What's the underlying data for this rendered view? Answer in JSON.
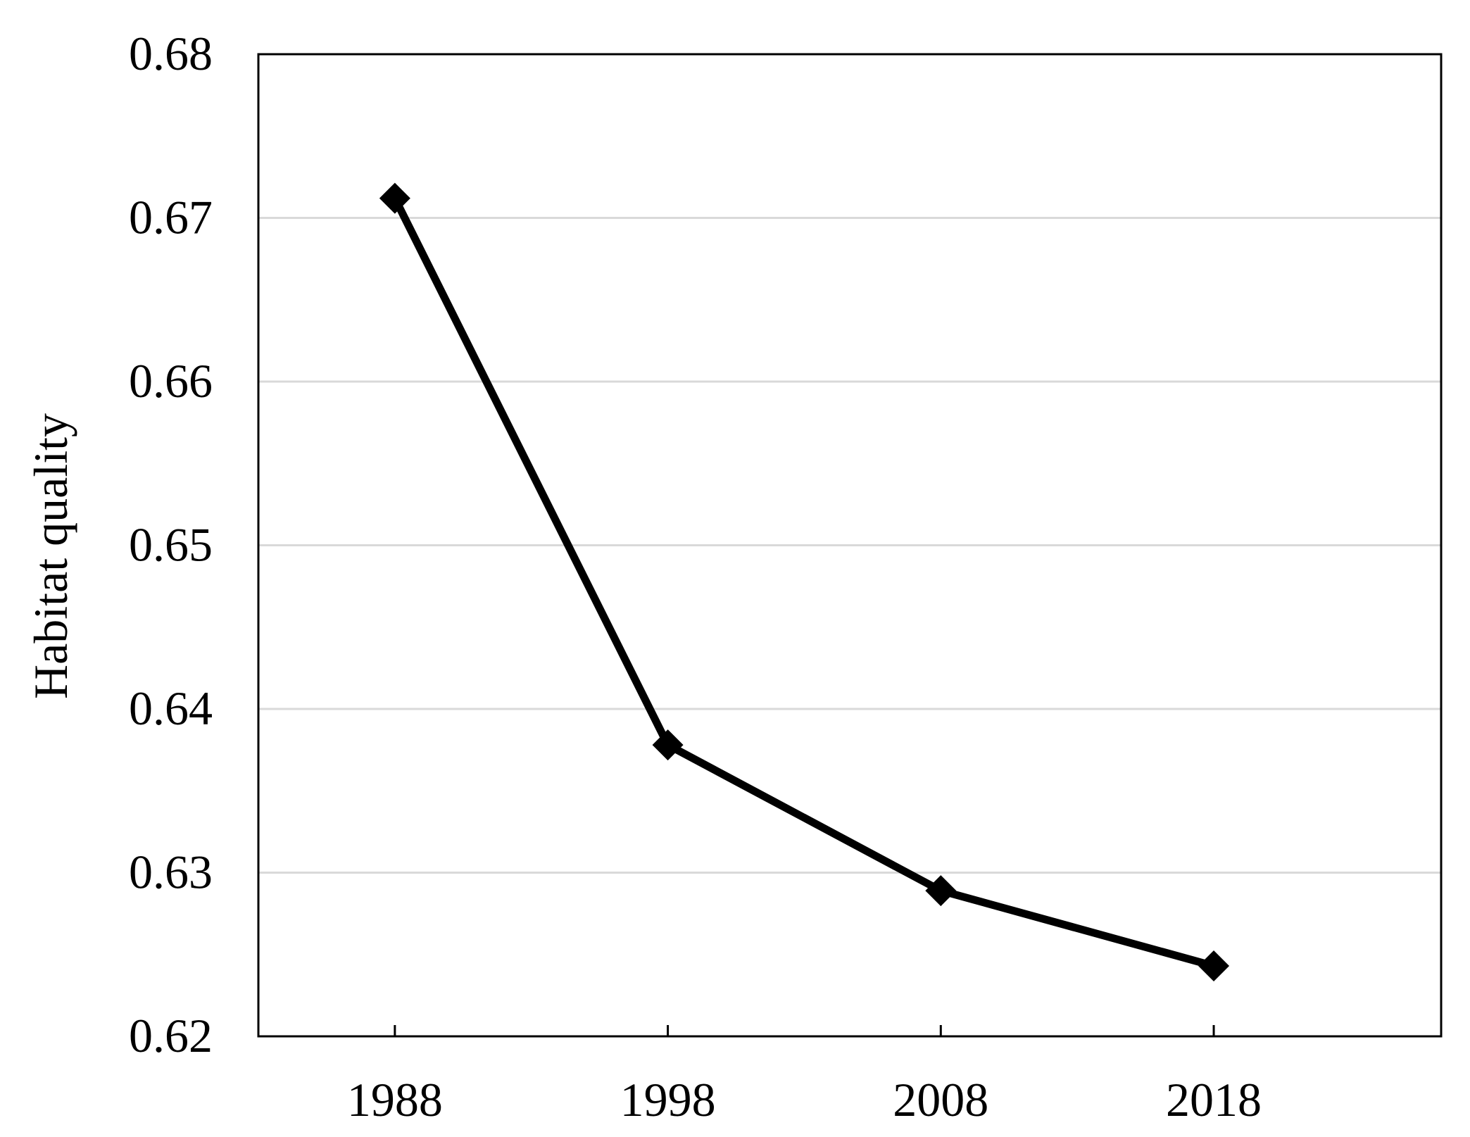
{
  "chart_data": {
    "type": "line",
    "title": "",
    "xlabel": "",
    "ylabel": "Habitat quality",
    "categories": [
      "1988",
      "1998",
      "2008",
      "2018"
    ],
    "series": [
      {
        "values": [
          0.6712,
          0.6378,
          0.6289,
          0.6243
        ]
      }
    ],
    "ylim": [
      0.62,
      0.68
    ],
    "yticks": [
      "0.62",
      "0.63",
      "0.64",
      "0.65",
      "0.66",
      "0.67",
      "0.68"
    ],
    "grid": "horizontal",
    "marker": "diamond",
    "colors": {
      "line": "#000000",
      "grid": "#d9d9d9",
      "frame": "#000000"
    }
  }
}
